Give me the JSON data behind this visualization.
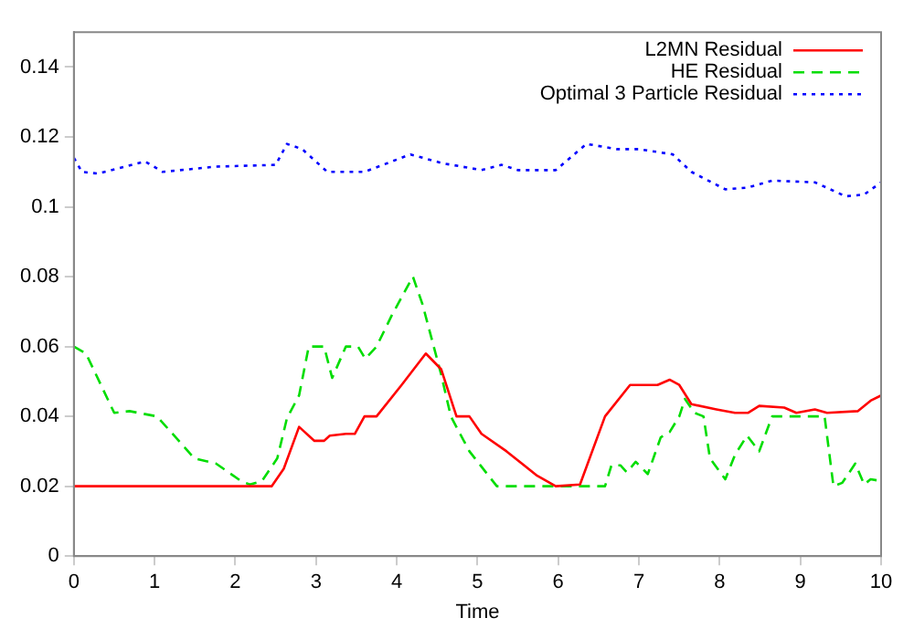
{
  "chart_data": {
    "type": "line",
    "xlabel": "Time",
    "xlim": [
      0,
      10
    ],
    "xticks": [
      0,
      1,
      2,
      3,
      4,
      5,
      6,
      7,
      8,
      9,
      10
    ],
    "ylim": [
      0,
      0.15
    ],
    "yticks": [
      0,
      0.02,
      0.04,
      0.06,
      0.08,
      0.1,
      0.12,
      0.14
    ],
    "grid": false,
    "legend": "top right",
    "marker": "none",
    "series": [
      {
        "name": "L2MN Residual",
        "color": "#ff0000",
        "line_style": "solid",
        "x": [
          0,
          2.45,
          2.6,
          2.79,
          2.98,
          3.1,
          3.17,
          3.37,
          3.48,
          3.6,
          3.75,
          4.06,
          4.36,
          4.55,
          4.74,
          4.9,
          5.05,
          5.36,
          5.74,
          5.97,
          6.27,
          6.58,
          6.89,
          7.04,
          7.23,
          7.38,
          7.5,
          7.65,
          7.96,
          8.19,
          8.35,
          8.49,
          8.8,
          8.95,
          9.18,
          9.33,
          9.71,
          9.87,
          10
        ],
        "values": [
          0.02,
          0.02,
          0.025,
          0.037,
          0.033,
          0.033,
          0.0345,
          0.035,
          0.035,
          0.04,
          0.04,
          0.049,
          0.058,
          0.0535,
          0.04,
          0.04,
          0.035,
          0.03,
          0.023,
          0.02,
          0.0205,
          0.04,
          0.049,
          0.049,
          0.049,
          0.0505,
          0.049,
          0.0435,
          0.042,
          0.041,
          0.041,
          0.043,
          0.0425,
          0.041,
          0.042,
          0.041,
          0.0415,
          0.0445,
          0.046
        ]
      },
      {
        "name": "HE Residual",
        "color": "#00dd00",
        "line_style": "dashed",
        "x": [
          0,
          0.15,
          0.5,
          0.69,
          1.03,
          1.3,
          1.49,
          1.76,
          2.07,
          2.18,
          2.33,
          2.52,
          2.64,
          2.79,
          2.91,
          3.1,
          3.2,
          3.37,
          3.52,
          3.61,
          3.75,
          3.94,
          4.2,
          4.32,
          4.55,
          4.67,
          4.9,
          5.24,
          6.58,
          6.66,
          6.77,
          6.85,
          6.96,
          7.11,
          7.27,
          7.38,
          7.5,
          7.57,
          7.69,
          7.8,
          7.88,
          8.07,
          8.19,
          8.34,
          8.49,
          8.65,
          9.3,
          9.41,
          9.52,
          9.68,
          9.79,
          9.87,
          10
        ],
        "values": [
          0.06,
          0.058,
          0.041,
          0.0415,
          0.04,
          0.033,
          0.028,
          0.0265,
          0.0215,
          0.0205,
          0.0215,
          0.028,
          0.0395,
          0.046,
          0.06,
          0.06,
          0.051,
          0.06,
          0.06,
          0.0565,
          0.06,
          0.069,
          0.08,
          0.072,
          0.052,
          0.04,
          0.03,
          0.02,
          0.02,
          0.026,
          0.026,
          0.024,
          0.027,
          0.0235,
          0.034,
          0.0355,
          0.04,
          0.045,
          0.041,
          0.04,
          0.028,
          0.022,
          0.029,
          0.0345,
          0.03,
          0.04,
          0.04,
          0.02,
          0.021,
          0.0265,
          0.0205,
          0.022,
          0.0215
        ]
      },
      {
        "name": "Optimal 3 Particle Residual",
        "color": "#0000ff",
        "line_style": "dotted",
        "x": [
          0,
          0.1,
          0.3,
          0.88,
          1.1,
          1.76,
          2.5,
          2.64,
          2.83,
          3.14,
          3.6,
          4.17,
          4.56,
          5.05,
          5.3,
          5.5,
          5.97,
          6.35,
          6.73,
          7.0,
          7.42,
          7.65,
          8.07,
          8.35,
          8.65,
          9.18,
          9.56,
          9.79,
          10
        ],
        "values": [
          0.114,
          0.11,
          0.1095,
          0.113,
          0.11,
          0.1115,
          0.112,
          0.118,
          0.1165,
          0.11,
          0.11,
          0.115,
          0.1125,
          0.1105,
          0.112,
          0.1105,
          0.1105,
          0.118,
          0.1165,
          0.1165,
          0.115,
          0.11,
          0.105,
          0.1055,
          0.1075,
          0.107,
          0.103,
          0.1035,
          0.107
        ]
      }
    ]
  }
}
